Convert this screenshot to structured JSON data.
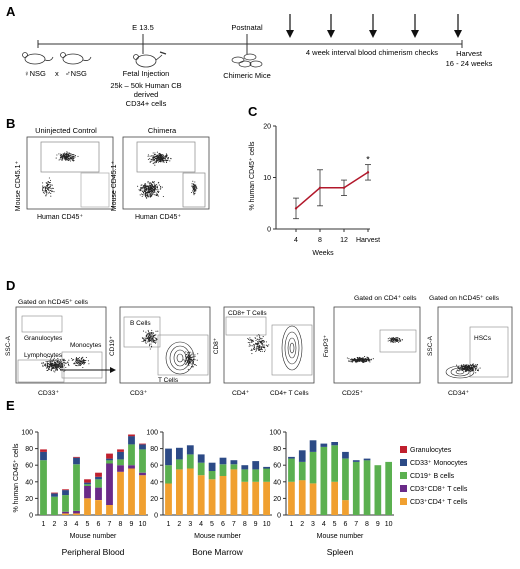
{
  "panels": {
    "A": {
      "letter": "A",
      "e135": "E 13.5",
      "postnatal": "Postnatal",
      "parent_female": "♀NSG",
      "cross": "x",
      "parent_male": "♂NSG",
      "fetal_injection": "Fetal Injection",
      "cells_line1": "25k – 50k Human CB",
      "cells_line2": "derived",
      "cells_line3": "CD34+ cells",
      "chimeric_mice": "Chimeric Mice",
      "checks": "4 week interval blood chimerism checks",
      "harvest_line1": "Harvest",
      "harvest_line2": "16 - 24 weeks"
    },
    "B": {
      "letter": "B",
      "uninjected": "Uninjected Control",
      "chimera": "Chimera",
      "ylabel": "Mouse CD45.1⁺",
      "xlabel": "Human CD45⁺"
    },
    "C": {
      "letter": "C",
      "ylabel": "% human CD45⁺ cells",
      "xlabel": "Weeks",
      "asterisk": "*"
    },
    "D": {
      "letter": "D",
      "gate1": "Gated on hCD45⁺ cells",
      "gate4": "Gated on CD4⁺ cells",
      "gate5": "Gated on hCD45⁺ cells",
      "granulocytes": "Granulocytes",
      "monocytes": "Monocytes",
      "lymphocytes": "Lymphocytes",
      "ssc": "SSC-A",
      "cd33": "CD33⁺",
      "bcells": "B Cells",
      "tcells": "T Cells",
      "cd19": "CD19⁺",
      "cd3": "CD3⁺",
      "cd8t": "CD8+ T Cells",
      "cd4t": "CD4+ T Cells",
      "cd8": "CD8⁺",
      "cd4": "CD4⁺",
      "foxp3": "FoxP3⁺",
      "cd25": "CD25⁺",
      "hscs": "HSCs",
      "ssc2": "SSC-A",
      "cd34": "CD34⁺"
    },
    "E": {
      "letter": "E",
      "ylabel": "% human CD45⁺ cells",
      "xlabel": "Mouse number"
    }
  },
  "chart_data": [
    {
      "type": "line",
      "panel": "C",
      "x": [
        "4",
        "8",
        "12",
        "Harvest"
      ],
      "series": [
        {
          "values": [
            4,
            8,
            8,
            11
          ],
          "error": [
            2,
            3.5,
            1.5,
            1.5
          ]
        }
      ],
      "ylim": [
        0,
        20
      ],
      "yticks": [
        "0",
        "10",
        "20"
      ],
      "xlabel": "Weeks",
      "ylabel": "% human CD45⁺ cells",
      "color": "#b2182b",
      "annotation": "*"
    },
    {
      "type": "bar",
      "panel": "E",
      "stacked": true,
      "ylim": [
        0,
        100
      ],
      "yticks": [
        "0",
        "20",
        "40",
        "60",
        "80",
        "100"
      ],
      "xlabel": "Mouse number",
      "ylabel": "% human CD45⁺ cells",
      "legend_placement": "right",
      "series_colors": [
        "#f0a030",
        "#6a2a88",
        "#5bb050",
        "#2c4a86",
        "#c0202e"
      ],
      "legend": [
        {
          "name": "Granulocytes",
          "color": "#c0202e"
        },
        {
          "name": "CD33⁺ Monocytes",
          "color": "#2c4a86"
        },
        {
          "name": "CD19⁺ B cells",
          "color": "#5bb050"
        },
        {
          "name": "CD3⁺CD8⁺ T cells",
          "color": "#6a2a88"
        },
        {
          "name": "CD3⁺CD4⁺ T cells",
          "color": "#f0a030"
        }
      ],
      "subplots": [
        {
          "title": "Peripheral Blood",
          "categories": [
            "1",
            "2",
            "3",
            "4",
            "5",
            "6",
            "7",
            "8",
            "9",
            "10"
          ],
          "stacks": [
            [
              0,
              0,
              66,
              10,
              3
            ],
            [
              0,
              0,
              22,
              4,
              1
            ],
            [
              2,
              2,
              20,
              6,
              1
            ],
            [
              2,
              3,
              56,
              8,
              1
            ],
            [
              20,
              15,
              2,
              2,
              4
            ],
            [
              18,
              15,
              10,
              3,
              5
            ],
            [
              12,
              50,
              4,
              2,
              6
            ],
            [
              52,
              8,
              7,
              9,
              3
            ],
            [
              56,
              4,
              25,
              10,
              2
            ],
            [
              48,
              3,
              28,
              6,
              1
            ]
          ]
        },
        {
          "title": "Bone Marrow",
          "categories": [
            "1",
            "2",
            "3",
            "4",
            "5",
            "6",
            "7",
            "8",
            "9",
            "10"
          ],
          "stacks": [
            [
              38,
              0,
              22,
              20,
              0
            ],
            [
              55,
              0,
              12,
              14,
              0
            ],
            [
              56,
              0,
              17,
              11,
              0
            ],
            [
              48,
              0,
              15,
              10,
              0
            ],
            [
              43,
              0,
              10,
              10,
              0
            ],
            [
              47,
              0,
              14,
              8,
              0
            ],
            [
              55,
              0,
              6,
              5,
              0
            ],
            [
              40,
              0,
              15,
              5,
              0
            ],
            [
              40,
              0,
              15,
              10,
              0
            ],
            [
              40,
              0,
              16,
              2,
              0
            ]
          ]
        },
        {
          "title": "Spleen",
          "categories": [
            "1",
            "2",
            "3",
            "4",
            "5",
            "6",
            "7",
            "8",
            "9",
            "10"
          ],
          "stacks": [
            [
              40,
              0,
              28,
              2,
              0
            ],
            [
              42,
              0,
              22,
              14,
              0
            ],
            [
              38,
              0,
              38,
              14,
              0
            ],
            [
              0,
              0,
              82,
              4,
              0
            ],
            [
              40,
              0,
              44,
              4,
              0
            ],
            [
              18,
              0,
              50,
              8,
              0
            ],
            [
              0,
              0,
              64,
              2,
              0
            ],
            [
              0,
              0,
              66,
              2,
              0
            ],
            [
              0,
              0,
              60,
              0,
              0
            ],
            [
              0,
              0,
              64,
              0,
              0
            ]
          ]
        }
      ]
    }
  ]
}
